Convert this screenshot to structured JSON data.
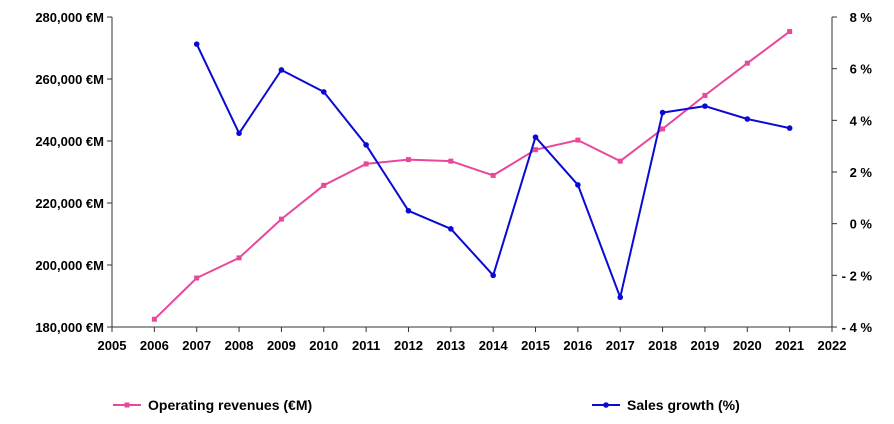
{
  "chart_data": {
    "type": "line",
    "x": [
      2005,
      2006,
      2007,
      2008,
      2009,
      2010,
      2011,
      2012,
      2013,
      2014,
      2015,
      2016,
      2017,
      2018,
      2019,
      2020,
      2021,
      2022
    ],
    "x_ticks": [
      "2005",
      "2006",
      "2007",
      "2008",
      "2009",
      "2010",
      "2011",
      "2012",
      "2013",
      "2014",
      "2015",
      "2016",
      "2017",
      "2018",
      "2019",
      "2020",
      "2021",
      "2022"
    ],
    "xlim": [
      2005,
      2022
    ],
    "y_left": {
      "lim": [
        180000,
        280000
      ],
      "ticks": [
        180000,
        200000,
        220000,
        240000,
        260000,
        280000
      ],
      "tick_labels": [
        "180,000 €M",
        "200,000 €M",
        "220,000 €M",
        "240,000 €M",
        "260,000 €M",
        "280,000 €M"
      ]
    },
    "y_right": {
      "lim": [
        -4,
        8
      ],
      "ticks": [
        -4,
        -2,
        0,
        2,
        4,
        6,
        8
      ],
      "tick_labels": [
        "- 4 %",
        "- 2 %",
        "0 %",
        "2 %",
        "4 %",
        "6 %",
        "8 %"
      ]
    },
    "series": [
      {
        "name": "Operating revenues  (€M)",
        "axis": "left",
        "color": "#e8489a",
        "marker": "square",
        "x": [
          2006,
          2007,
          2008,
          2009,
          2010,
          2011,
          2012,
          2013,
          2014,
          2015,
          2016,
          2017,
          2018,
          2019,
          2020,
          2021
        ],
        "values": [
          182500,
          195800,
          202300,
          214800,
          225700,
          232600,
          234000,
          233500,
          228900,
          237200,
          240300,
          233500,
          243900,
          254700,
          265100,
          275300
        ]
      },
      {
        "name": "Sales growth (%)",
        "axis": "right",
        "color": "#0a0ad4",
        "marker": "circle",
        "x": [
          2007,
          2008,
          2009,
          2010,
          2011,
          2012,
          2013,
          2014,
          2015,
          2016,
          2017,
          2018,
          2019,
          2020,
          2021
        ],
        "values": [
          6.95,
          3.5,
          5.95,
          5.1,
          3.05,
          0.5,
          -0.2,
          -2.0,
          3.35,
          1.5,
          -2.85,
          4.3,
          4.55,
          4.05,
          3.7
        ]
      }
    ],
    "grid": false,
    "legend": "bottom"
  }
}
